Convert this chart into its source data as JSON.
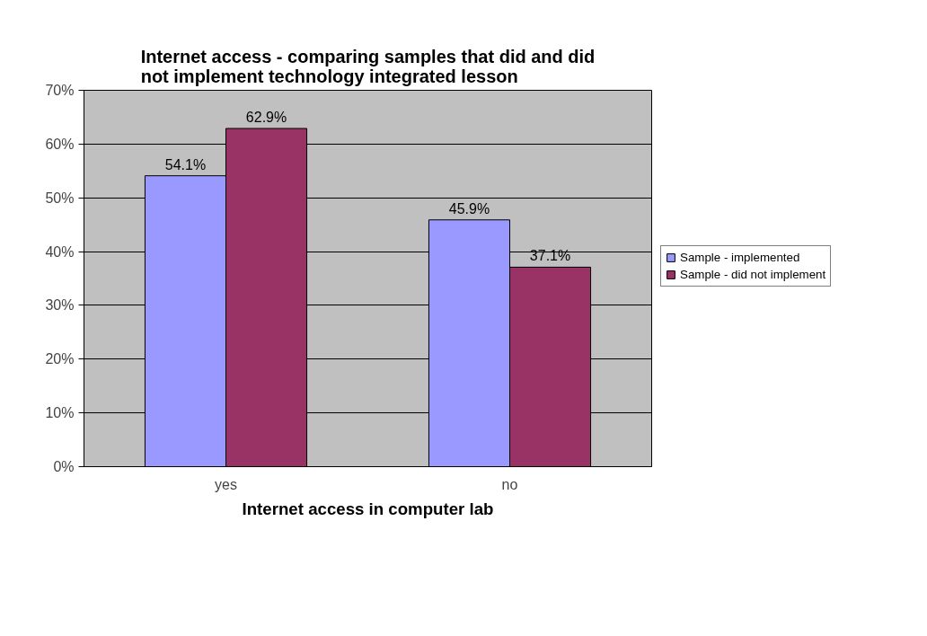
{
  "chart_data": {
    "type": "bar",
    "title": "Internet access - comparing samples that did and did\nnot implement technology integrated lesson",
    "xlabel": "Internet access in computer lab",
    "categories": [
      "yes",
      "no"
    ],
    "series": [
      {
        "name": "Sample - implemented",
        "color": "#9999ff",
        "values": [
          54.1,
          45.9
        ],
        "value_labels": [
          "54.1%",
          "45.9%"
        ]
      },
      {
        "name": "Sample - did not implement",
        "color": "#993366",
        "values": [
          62.9,
          37.1
        ],
        "value_labels": [
          "62.9%",
          "37.1%"
        ]
      }
    ],
    "ylim": [
      0,
      70
    ],
    "yticks": [
      {
        "value": 0,
        "label": "0%"
      },
      {
        "value": 10,
        "label": "10%"
      },
      {
        "value": 20,
        "label": "20%"
      },
      {
        "value": 30,
        "label": "30%"
      },
      {
        "value": 40,
        "label": "40%"
      },
      {
        "value": 50,
        "label": "50%"
      },
      {
        "value": 60,
        "label": "60%"
      },
      {
        "value": 70,
        "label": "70%"
      }
    ],
    "grid": "y",
    "legend": "right"
  }
}
